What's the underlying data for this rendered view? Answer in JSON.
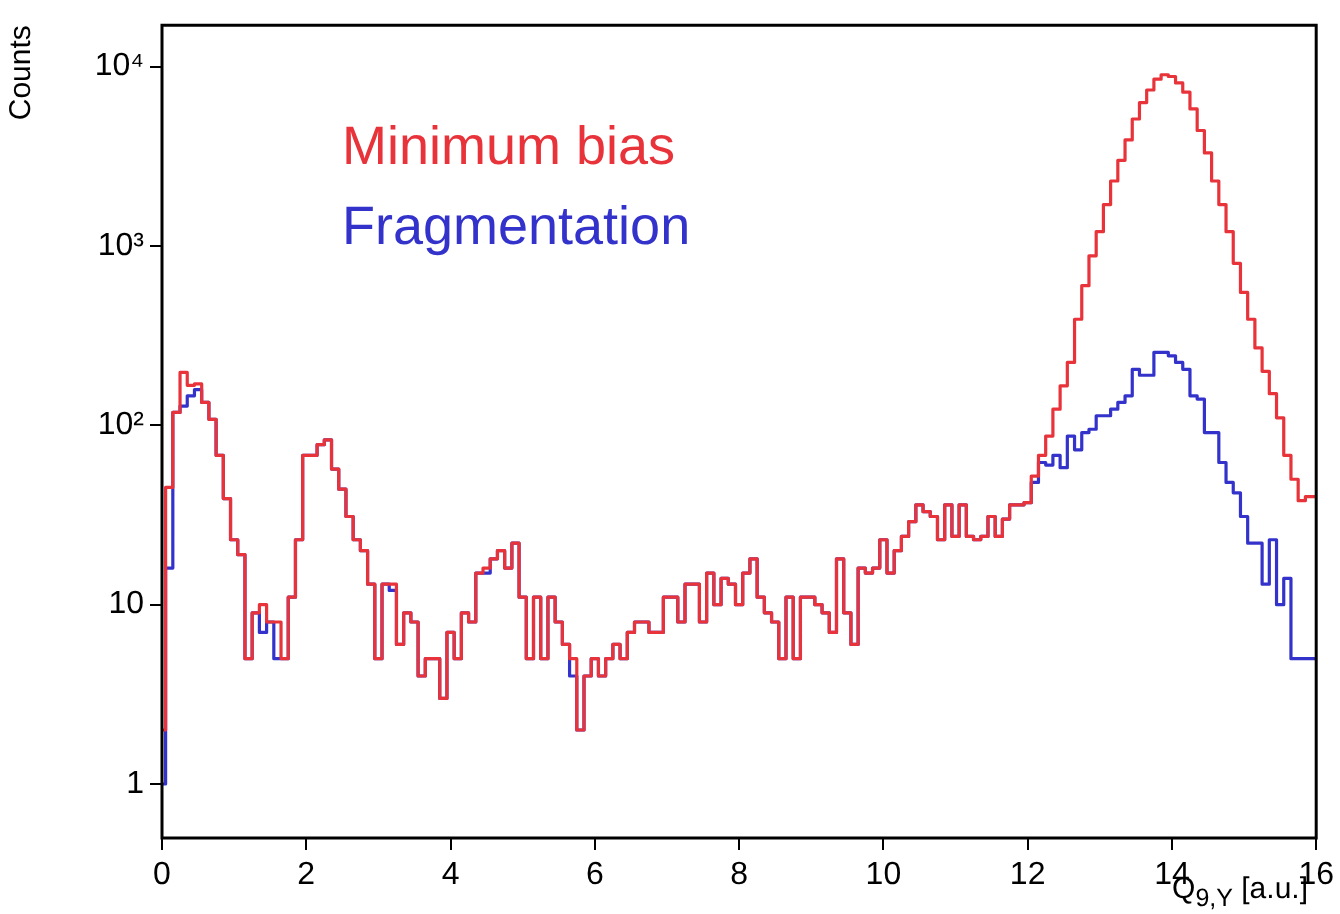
{
  "chart_data": {
    "type": "histogram",
    "xlabel": "Q$_{9,Y}$ [a.u.]",
    "ylabel": "Counts",
    "bins": [
      0,
      0.1,
      0.2,
      0.3,
      0.4,
      0.5,
      0.6,
      0.7,
      0.8,
      0.9,
      1,
      1.1,
      1.2,
      1.3,
      1.4,
      1.5,
      1.6,
      1.7,
      1.8,
      1.9,
      2,
      2.1,
      2.2,
      2.3,
      2.4,
      2.5,
      2.6,
      2.7,
      2.8,
      2.9,
      3,
      3.1,
      3.2,
      3.3,
      3.4,
      3.5,
      3.6,
      3.7,
      3.8,
      3.9,
      4,
      4.1,
      4.2,
      4.3,
      4.4,
      4.5,
      4.6,
      4.7,
      4.8,
      4.9,
      5,
      5.1,
      5.2,
      5.3,
      5.4,
      5.5,
      5.6,
      5.7,
      5.8,
      5.9,
      6,
      6.1,
      6.2,
      6.3,
      6.4,
      6.5,
      6.6,
      6.7,
      6.8,
      6.9,
      7,
      7.1,
      7.2,
      7.3,
      7.4,
      7.5,
      7.6,
      7.7,
      7.8,
      7.9,
      8,
      8.1,
      8.2,
      8.3,
      8.4,
      8.5,
      8.6,
      8.7,
      8.8,
      8.9,
      9,
      9.1,
      9.2,
      9.3,
      9.4,
      9.5,
      9.6,
      9.7,
      9.8,
      9.9,
      10,
      10.1,
      10.2,
      10.3,
      10.4,
      10.5,
      10.6,
      10.7,
      10.8,
      10.9,
      11,
      11.1,
      11.2,
      11.3,
      11.4,
      11.5,
      11.6,
      11.7,
      11.8,
      11.9,
      12,
      12.1,
      12.2,
      12.3,
      12.4,
      12.5,
      12.6,
      12.7,
      12.8,
      12.9,
      13,
      13.1,
      13.2,
      13.3,
      13.4,
      13.5,
      13.6,
      13.7,
      13.8,
      13.9,
      14,
      14.1,
      14.2,
      14.3,
      14.4,
      14.5,
      14.6,
      14.7,
      14.8,
      14.9,
      15,
      15.1,
      15.2,
      15.3,
      15.4,
      15.5,
      15.6,
      15.7,
      15.8,
      15.9,
      16
    ],
    "series": [
      {
        "name": "Minimum bias",
        "color": "#e8333a",
        "values": [
          2,
          45,
          118,
          197,
          167,
          170,
          134,
          108,
          68,
          39,
          23,
          19,
          5,
          9,
          10,
          8,
          8,
          5,
          11,
          23,
          68,
          68,
          78,
          83,
          57,
          44,
          31,
          23,
          20,
          13,
          5,
          13,
          13,
          6,
          9,
          8,
          4,
          5,
          5,
          3,
          7,
          5,
          9,
          8,
          15,
          16,
          18,
          20,
          16,
          22,
          11,
          5,
          11,
          5,
          11,
          8,
          6,
          5,
          2,
          4,
          5,
          4,
          5,
          6,
          5,
          7,
          8,
          8,
          7,
          7,
          11,
          11,
          8,
          13,
          13,
          8,
          15,
          10,
          14,
          13,
          10,
          15,
          18,
          11,
          9,
          8,
          5,
          11,
          5,
          11,
          11,
          10,
          9,
          7,
          18,
          9,
          6,
          16,
          15,
          16,
          23,
          15,
          20,
          24,
          29,
          36,
          33,
          31,
          23,
          36,
          24,
          36,
          24,
          23,
          24,
          31,
          24,
          30,
          36,
          36,
          37,
          52,
          68,
          87,
          123,
          166,
          224,
          390,
          600,
          880,
          1200,
          1700,
          2300,
          3000,
          3900,
          5100,
          6300,
          7400,
          8500,
          9000,
          8800,
          8100,
          7200,
          5800,
          4400,
          3300,
          2300,
          1700,
          1200,
          800,
          550,
          390,
          270,
          200,
          150,
          110,
          68,
          50,
          38,
          40
        ]
      },
      {
        "name": "Fragmentation",
        "color": "#3333cc",
        "values": [
          1,
          16,
          118,
          128,
          146,
          158,
          134,
          108,
          68,
          39,
          23,
          19,
          5,
          9,
          7,
          8,
          5,
          5,
          11,
          23,
          68,
          68,
          78,
          83,
          57,
          44,
          31,
          23,
          20,
          13,
          5,
          13,
          12,
          6,
          9,
          8,
          4,
          5,
          5,
          3,
          7,
          5,
          9,
          8,
          15,
          15,
          18,
          20,
          16,
          22,
          11,
          5,
          11,
          5,
          11,
          8,
          6,
          4,
          2,
          4,
          5,
          4,
          5,
          6,
          5,
          7,
          8,
          8,
          7,
          7,
          11,
          11,
          8,
          13,
          13,
          8,
          15,
          10,
          14,
          13,
          10,
          15,
          18,
          11,
          9,
          8,
          5,
          11,
          5,
          11,
          11,
          10,
          9,
          7,
          18,
          9,
          6,
          16,
          15,
          16,
          23,
          15,
          20,
          24,
          29,
          36,
          33,
          31,
          23,
          36,
          24,
          36,
          24,
          23,
          24,
          31,
          24,
          30,
          36,
          36,
          37,
          48,
          62,
          60,
          68,
          58,
          87,
          73,
          91,
          95,
          113,
          113,
          123,
          134,
          146,
          205,
          190,
          190,
          255,
          255,
          244,
          224,
          205,
          146,
          140,
          91,
          91,
          62,
          48,
          42,
          31,
          22,
          22,
          13,
          23,
          10,
          14,
          5,
          5,
          5
        ]
      }
    ],
    "xlim": [
      0,
      16
    ],
    "xticks": [
      0,
      2,
      4,
      6,
      8,
      10,
      12,
      14,
      16
    ],
    "ylim": [
      0.5,
      17000
    ],
    "yticks": [
      1,
      10,
      {
        "value": 100,
        "label": "10²"
      },
      {
        "value": 1000,
        "label": "10³"
      },
      {
        "value": 10000,
        "label": "10⁴"
      }
    ],
    "log": "y",
    "grid": false,
    "legend": "top left"
  }
}
